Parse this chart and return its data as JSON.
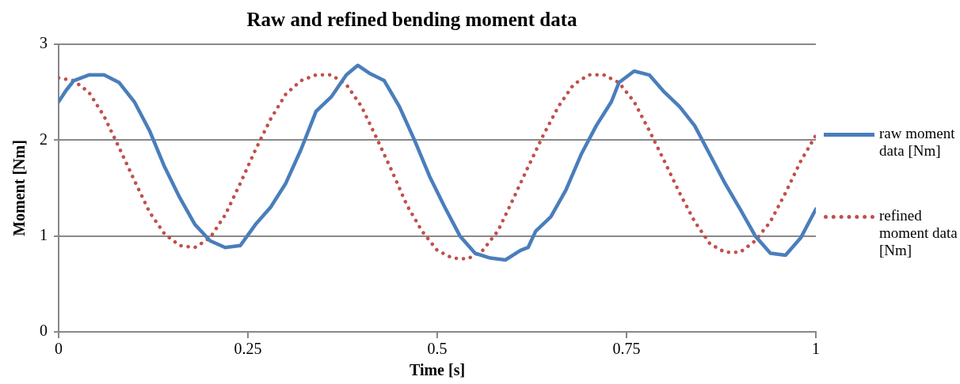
{
  "chart_data": {
    "type": "line",
    "title": "Raw and refined bending moment data",
    "xlabel": "Time [s]",
    "ylabel": "Moment [Nm]",
    "xlim": [
      0,
      1
    ],
    "xticks": [
      0,
      0.25,
      0.5,
      0.75,
      1
    ],
    "ylim": [
      0,
      3
    ],
    "yticks": [
      0,
      1,
      2,
      3
    ],
    "grid": "y",
    "legend": "right",
    "marker": "none",
    "series": [
      {
        "name": "raw moment data [Nm]",
        "color": "#4a7ebb",
        "line_style": "solid",
        "x": [
          0,
          0.01,
          0.02,
          0.04,
          0.06,
          0.08,
          0.1,
          0.12,
          0.14,
          0.16,
          0.18,
          0.2,
          0.22,
          0.24,
          0.26,
          0.28,
          0.3,
          0.32,
          0.34,
          0.36,
          0.38,
          0.395,
          0.41,
          0.43,
          0.45,
          0.47,
          0.49,
          0.51,
          0.53,
          0.55,
          0.57,
          0.59,
          0.61,
          0.62,
          0.63,
          0.65,
          0.67,
          0.69,
          0.71,
          0.73,
          0.74,
          0.76,
          0.78,
          0.8,
          0.82,
          0.84,
          0.86,
          0.88,
          0.9,
          0.92,
          0.94,
          0.96,
          0.98,
          1
        ],
        "values": [
          2.4,
          2.52,
          2.62,
          2.68,
          2.68,
          2.6,
          2.4,
          2.1,
          1.72,
          1.4,
          1.12,
          0.95,
          0.88,
          0.9,
          1.12,
          1.3,
          1.55,
          1.9,
          2.3,
          2.45,
          2.68,
          2.78,
          2.7,
          2.62,
          2.35,
          2.0,
          1.62,
          1.3,
          1.0,
          0.82,
          0.77,
          0.75,
          0.85,
          0.88,
          1.05,
          1.2,
          1.48,
          1.85,
          2.15,
          2.4,
          2.6,
          2.72,
          2.68,
          2.5,
          2.35,
          2.15,
          1.85,
          1.55,
          1.28,
          1.0,
          0.82,
          0.8,
          0.98,
          1.28
        ]
      },
      {
        "name": "refined moment data [Nm]",
        "color": "#c0504d",
        "line_style": "dotted",
        "x": [
          0,
          0.02,
          0.04,
          0.06,
          0.08,
          0.1,
          0.12,
          0.14,
          0.16,
          0.18,
          0.2,
          0.22,
          0.24,
          0.26,
          0.28,
          0.3,
          0.32,
          0.34,
          0.36,
          0.38,
          0.4,
          0.42,
          0.44,
          0.46,
          0.48,
          0.5,
          0.52,
          0.54,
          0.56,
          0.58,
          0.6,
          0.62,
          0.64,
          0.66,
          0.68,
          0.7,
          0.72,
          0.74,
          0.76,
          0.78,
          0.8,
          0.82,
          0.84,
          0.86,
          0.88,
          0.9,
          0.92,
          0.94,
          0.96,
          0.98,
          1
        ],
        "values": [
          2.65,
          2.62,
          2.5,
          2.25,
          1.92,
          1.58,
          1.25,
          1.02,
          0.9,
          0.88,
          0.98,
          1.22,
          1.55,
          1.9,
          2.22,
          2.48,
          2.62,
          2.68,
          2.68,
          2.58,
          2.35,
          2.02,
          1.68,
          1.32,
          1.05,
          0.85,
          0.77,
          0.76,
          0.85,
          1.05,
          1.38,
          1.72,
          2.05,
          2.35,
          2.58,
          2.68,
          2.68,
          2.6,
          2.4,
          2.1,
          1.78,
          1.45,
          1.15,
          0.92,
          0.83,
          0.83,
          0.95,
          1.15,
          1.45,
          1.78,
          2.05
        ]
      }
    ]
  }
}
